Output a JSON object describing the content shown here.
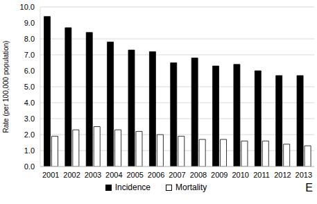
{
  "chart_data": {
    "type": "bar",
    "categories": [
      "2001",
      "2002",
      "2003",
      "2004",
      "2005",
      "2006",
      "2007",
      "2008",
      "2009",
      "2010",
      "2011",
      "2012",
      "2013"
    ],
    "series": [
      {
        "name": "Incidence",
        "color": "#000000",
        "values": [
          9.4,
          8.7,
          8.4,
          7.8,
          7.3,
          7.2,
          6.5,
          6.8,
          6.3,
          6.4,
          6.0,
          5.7,
          5.7
        ]
      },
      {
        "name": "Mortality",
        "color": "#ffffff",
        "values": [
          1.9,
          2.3,
          2.5,
          2.3,
          2.2,
          2.0,
          1.9,
          1.7,
          1.7,
          1.6,
          1.6,
          1.4,
          1.3
        ]
      }
    ],
    "ylabel": "Rate (per 100,000 population)",
    "ylim": [
      0,
      10
    ],
    "yticks": [
      {
        "value": 0,
        "label": "0.0"
      },
      {
        "value": 1,
        "label": "1.0"
      },
      {
        "value": 2,
        "label": "2.0"
      },
      {
        "value": 3,
        "label": "3.0"
      },
      {
        "value": 4,
        "label": "4.0"
      },
      {
        "value": 5,
        "label": "5.0"
      },
      {
        "value": 6,
        "label": "6.0"
      },
      {
        "value": 7,
        "label": "7.0"
      },
      {
        "value": 8,
        "label": "8.0"
      },
      {
        "value": 9,
        "label": "9.0"
      },
      {
        "value": 10,
        "label": "10.0"
      }
    ],
    "grid": true,
    "legend": "bottom",
    "annotation": "E"
  }
}
